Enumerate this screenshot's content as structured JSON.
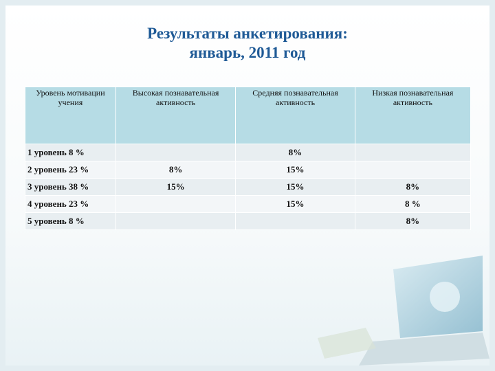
{
  "title": {
    "line1": "Результаты анкетирования:",
    "line2": "январь, 2011 год"
  },
  "table": {
    "header": [
      "Уровень мотивации учения",
      "Высокая познавательная активность",
      "Средняя познавательная активность",
      "Низкая познавательная активность"
    ],
    "rows": [
      [
        "1 уровень  8 %",
        null,
        "8%",
        null
      ],
      [
        "2 уровень  23 %",
        "8%",
        "15%",
        null
      ],
      [
        "3 уровень  38 %",
        "15%",
        "15%",
        "8%"
      ],
      [
        "4 уровень  23 %",
        null,
        "15%",
        "8 %"
      ],
      [
        "5 уровень  8 %",
        null,
        null,
        "8%"
      ]
    ]
  }
}
